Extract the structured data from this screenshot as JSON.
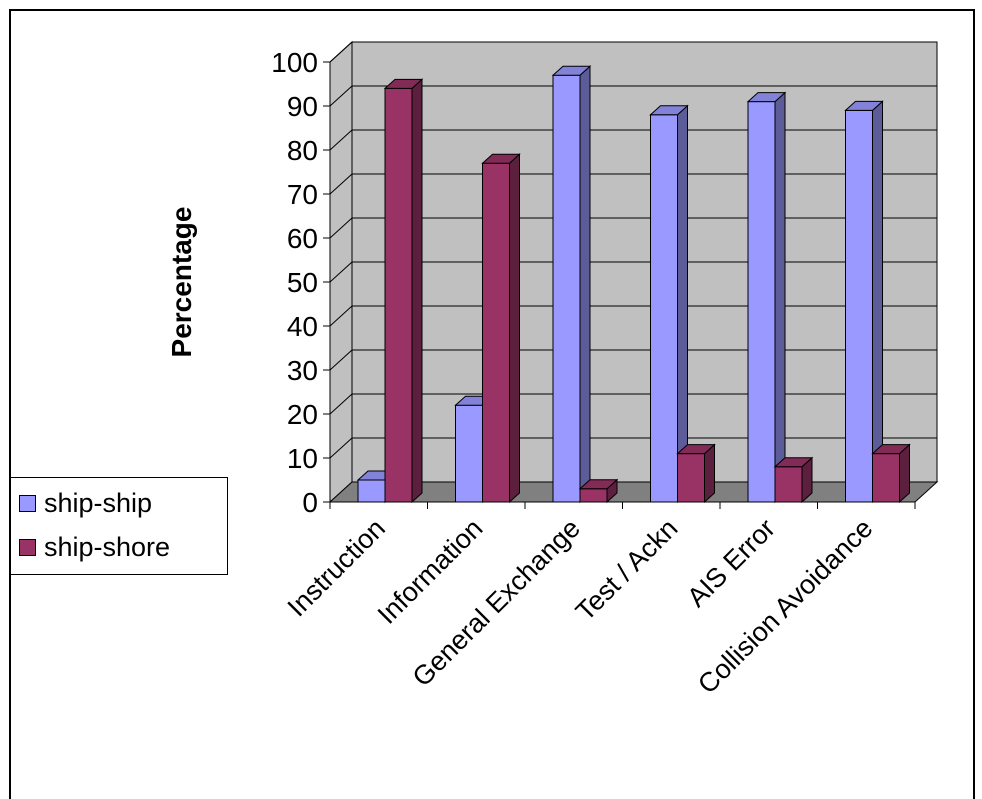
{
  "chart_data": {
    "type": "bar",
    "title": "",
    "xlabel": "",
    "ylabel": "Percentage",
    "ylim": [
      0,
      100
    ],
    "yticks": [
      0,
      10,
      20,
      30,
      40,
      50,
      60,
      70,
      80,
      90,
      100
    ],
    "grid": true,
    "legend_position": "left",
    "categories": [
      "Instruction",
      "Information",
      "General Exchange",
      "Test / Ackn",
      "AIS Error",
      "Collision Avoidance"
    ],
    "series": [
      {
        "name": "ship-ship",
        "color": "#9999ff",
        "values": [
          5,
          22,
          97,
          88,
          91,
          89
        ]
      },
      {
        "name": "ship-shore",
        "color": "#993366",
        "values": [
          94,
          77,
          3,
          11,
          8,
          11
        ]
      }
    ],
    "colors": {
      "wall": "#c0c0c0",
      "floor": "#808080",
      "grid": "#000000"
    }
  }
}
